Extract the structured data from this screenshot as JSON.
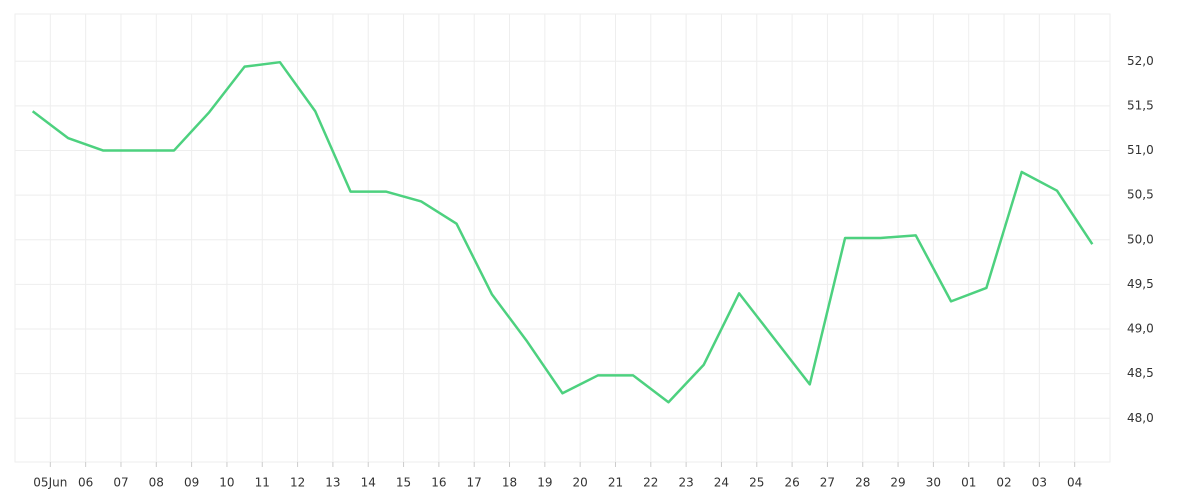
{
  "chart_data": {
    "type": "line",
    "x": [
      -0.5,
      0.5,
      1.5,
      2.5,
      3.5,
      4.5,
      5.5,
      6.5,
      7.5,
      8.5,
      9.5,
      10.5,
      11.5,
      12.5,
      13.5,
      14.5,
      15.5,
      16.5,
      17.5,
      18.5,
      19.5,
      20.5,
      21.5,
      22.5,
      23.5,
      24.5,
      25.5,
      26.5,
      27.5,
      28.5,
      29.5
    ],
    "series": [
      {
        "color": "#4dd17f",
        "values": [
          51.44,
          51.14,
          51.0,
          51.0,
          51.0,
          51.43,
          51.94,
          51.99,
          51.44,
          50.54,
          50.54,
          50.43,
          50.18,
          49.39,
          48.86,
          48.28,
          48.48,
          48.48,
          48.18,
          48.6,
          49.4,
          48.89,
          48.38,
          50.02,
          50.02,
          50.05,
          49.31,
          49.46,
          50.76,
          50.55,
          49.95
        ]
      }
    ],
    "xlim": [
      -1,
      30
    ],
    "xticks": [
      {
        "value": 0,
        "label": "05Jun"
      },
      {
        "value": 1,
        "label": "06"
      },
      {
        "value": 2,
        "label": "07"
      },
      {
        "value": 3,
        "label": "08"
      },
      {
        "value": 4,
        "label": "09"
      },
      {
        "value": 5,
        "label": "10"
      },
      {
        "value": 6,
        "label": "11"
      },
      {
        "value": 7,
        "label": "12"
      },
      {
        "value": 8,
        "label": "13"
      },
      {
        "value": 9,
        "label": "14"
      },
      {
        "value": 10,
        "label": "15"
      },
      {
        "value": 11,
        "label": "16"
      },
      {
        "value": 12,
        "label": "17"
      },
      {
        "value": 13,
        "label": "18"
      },
      {
        "value": 14,
        "label": "19"
      },
      {
        "value": 15,
        "label": "20"
      },
      {
        "value": 16,
        "label": "21"
      },
      {
        "value": 17,
        "label": "22"
      },
      {
        "value": 18,
        "label": "23"
      },
      {
        "value": 19,
        "label": "24"
      },
      {
        "value": 20,
        "label": "25"
      },
      {
        "value": 21,
        "label": "26"
      },
      {
        "value": 22,
        "label": "27"
      },
      {
        "value": 23,
        "label": "28"
      },
      {
        "value": 24,
        "label": "29"
      },
      {
        "value": 25,
        "label": "30"
      },
      {
        "value": 26,
        "label": "01"
      },
      {
        "value": 27,
        "label": "02"
      },
      {
        "value": 28,
        "label": "03"
      },
      {
        "value": 29,
        "label": "04"
      }
    ],
    "ylim": [
      47.51,
      52.53
    ],
    "yticks": [
      {
        "value": 48,
        "label": "48,0"
      },
      {
        "value": 48.5,
        "label": "48,5"
      },
      {
        "value": 49,
        "label": "49,0"
      },
      {
        "value": 49.5,
        "label": "49,5"
      },
      {
        "value": 50,
        "label": "50,0"
      },
      {
        "value": 50.5,
        "label": "50,5"
      },
      {
        "value": 51,
        "label": "51,0"
      },
      {
        "value": 51.5,
        "label": "51,5"
      },
      {
        "value": 52,
        "label": "52,0"
      }
    ],
    "grid": true
  }
}
